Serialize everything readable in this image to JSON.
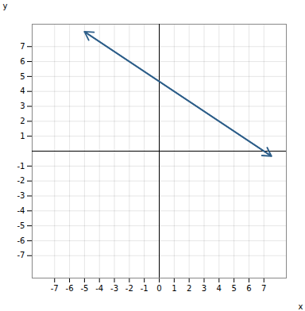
{
  "chart_data": {
    "type": "line",
    "x": [
      -5.0,
      7.5
    ],
    "values": [
      8.0,
      -0.333
    ],
    "color": "#2e5f8a",
    "marker": "arrow",
    "x_label": "x",
    "y_label": "y",
    "xlim": [
      -8.5,
      8.5
    ],
    "ylim": [
      -8.5,
      8.5
    ],
    "xticks": [
      -7,
      -6,
      -5,
      -4,
      -3,
      -2,
      -1,
      0,
      1,
      2,
      3,
      4,
      5,
      6,
      7
    ],
    "yticks": [
      -7,
      -6,
      -5,
      -4,
      -3,
      -2,
      -1,
      1,
      2,
      3,
      4,
      5,
      6,
      7
    ],
    "grid": true
  }
}
